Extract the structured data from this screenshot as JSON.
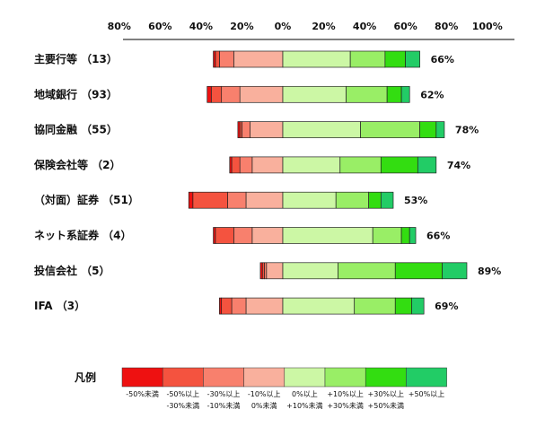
{
  "chart_data": {
    "type": "bar",
    "stacked": true,
    "orientation": "horizontal",
    "diverging": true,
    "xlim": [
      -80,
      100
    ],
    "x_ticks": [
      "80%",
      "60%",
      "40%",
      "20%",
      "0%",
      "20%",
      "40%",
      "60%",
      "80%",
      "100%"
    ],
    "categories": [
      "主要行等 （13）",
      "地域銀行 （93）",
      "協同金融 （55）",
      "保険会社等 （2）",
      "（対面）証券 （51）",
      "ネット系証券 （4）",
      "投信会社 （5）",
      "IFA （3）"
    ],
    "negative_totals": [
      -34,
      -37,
      -22,
      -26,
      -46,
      -34,
      -11,
      -31
    ],
    "positive_total_labels": [
      "66%",
      "62%",
      "78%",
      "74%",
      "53%",
      "66%",
      "89%",
      "69%"
    ],
    "series": [
      {
        "name": "-50%未満",
        "color": "#ee1111",
        "values": [
          -1,
          -2,
          -1,
          -1,
          -2,
          -1,
          -1,
          -1
        ]
      },
      {
        "name": "-50%以上 -30%未満",
        "color": "#f4533f",
        "values": [
          -2,
          -5,
          -1,
          -4,
          -17,
          -9,
          -1,
          -5
        ]
      },
      {
        "name": "-30%以上 -10%未満",
        "color": "#f8806d",
        "values": [
          -7,
          -9,
          -4,
          -6,
          -9,
          -9,
          -1,
          -7
        ]
      },
      {
        "name": "-10%以上 0%未満",
        "color": "#f9b09d",
        "values": [
          -24,
          -21,
          -16,
          -15,
          -18,
          -15,
          -8,
          -18
        ]
      },
      {
        "name": "0%以上 +10%未満",
        "color": "#ccf7a5",
        "values": [
          33,
          31,
          38,
          28,
          26,
          44,
          27,
          35
        ]
      },
      {
        "name": "+10%以上 +30%未満",
        "color": "#99ee66",
        "values": [
          17,
          20,
          29,
          20,
          16,
          14,
          28,
          20
        ]
      },
      {
        "name": "+30%以上 +50%未満",
        "color": "#33dd11",
        "values": [
          10,
          7,
          8,
          18,
          6,
          4,
          23,
          8
        ]
      },
      {
        "name": "+50%以上",
        "color": "#22cc66",
        "values": [
          7,
          4,
          4,
          9,
          6,
          3,
          12,
          6
        ]
      }
    ],
    "legend": {
      "title": "凡例",
      "labels_row1": [
        "-50%未満",
        "-50%以上",
        "-30%以上",
        "-10%以上",
        "0%以上",
        "+10%以上",
        "+30%以上",
        "+50%以上"
      ],
      "labels_row2": [
        "",
        "-30%未満",
        "-10%未満",
        "0%未満",
        "+10%未満",
        "+30%未満",
        "+50%未満",
        ""
      ]
    }
  }
}
